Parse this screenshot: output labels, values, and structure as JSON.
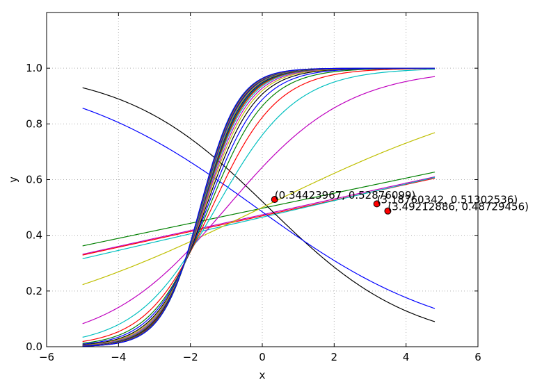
{
  "chart_data": {
    "type": "line",
    "xlabel": "x",
    "ylabel": "y",
    "xlim": [
      -6,
      6
    ],
    "ylim": [
      0,
      1.2
    ],
    "xticks": [
      "−6",
      "−4",
      "−2",
      "0",
      "2",
      "4",
      "6"
    ],
    "xtick_values": [
      -6,
      -4,
      -2,
      0,
      2,
      4,
      6
    ],
    "yticks": [
      "0.0",
      "0.2",
      "0.4",
      "0.6",
      "0.8",
      "1.0"
    ],
    "ytick_values": [
      0,
      0.2,
      0.4,
      0.6,
      0.8,
      1.0
    ],
    "grid": true,
    "x_range": [
      -5,
      4.8
    ],
    "sigmoid_curves_note_colors": [
      "#0000ff",
      "#008000",
      "#ff0000",
      "#00bfbf",
      "#bf00bf",
      "#bfbf00",
      "#000000"
    ],
    "sigmoid_family": [
      {
        "k": 0.25,
        "x0": 0,
        "color": "#bfbf00"
      },
      {
        "k": 0.6,
        "x0": -0.99,
        "color": "#bf00bf"
      },
      {
        "k": 0.9,
        "x0": -1.28,
        "color": "#00bfbf"
      },
      {
        "k": 1.1,
        "x0": -1.4,
        "color": "#ff0000"
      },
      {
        "k": 1.25,
        "x0": -1.48,
        "color": "#008000"
      },
      {
        "k": 1.35,
        "x0": -1.53,
        "color": "#0000ff"
      },
      {
        "k": 1.45,
        "x0": -1.57,
        "color": "#000000"
      },
      {
        "k": 1.52,
        "x0": -1.6,
        "color": "#bfbf00"
      },
      {
        "k": 1.58,
        "x0": -1.62,
        "color": "#bf00bf"
      },
      {
        "k": 1.63,
        "x0": -1.64,
        "color": "#00bfbf"
      },
      {
        "k": 1.67,
        "x0": -1.65,
        "color": "#ff0000"
      },
      {
        "k": 1.7,
        "x0": -1.66,
        "color": "#008000"
      },
      {
        "k": 1.73,
        "x0": -1.67,
        "color": "#0000ff"
      },
      {
        "k": 1.75,
        "x0": -1.68,
        "color": "#000000"
      },
      {
        "k": 1.77,
        "x0": -1.68,
        "color": "#bfbf00"
      },
      {
        "k": 1.79,
        "x0": -1.69,
        "color": "#bf00bf"
      },
      {
        "k": 1.8,
        "x0": -1.69,
        "color": "#00bfbf"
      },
      {
        "k": 1.81,
        "x0": -1.7,
        "color": "#ff0000"
      },
      {
        "k": 1.82,
        "x0": -1.7,
        "color": "#008000"
      },
      {
        "k": 1.83,
        "x0": -1.7,
        "color": "#0000ff"
      },
      {
        "k": 1.84,
        "x0": -1.71,
        "color": "#000000"
      },
      {
        "k": 1.85,
        "x0": -1.71,
        "color": "#bfbf00"
      },
      {
        "k": 1.86,
        "x0": -1.71,
        "color": "#bf00bf"
      },
      {
        "k": 1.87,
        "x0": -1.72,
        "color": "#00bfbf"
      },
      {
        "k": 1.88,
        "x0": -1.72,
        "color": "#ff0000"
      },
      {
        "k": 1.89,
        "x0": -1.72,
        "color": "#008000"
      },
      {
        "k": 1.9,
        "x0": -1.73,
        "color": "#0000ff"
      }
    ],
    "line_series": [
      {
        "type": "linear",
        "from": [
          -5,
          0.362
        ],
        "to": [
          4.8,
          0.627
        ],
        "color": "#008000"
      },
      {
        "type": "linear",
        "from": [
          -5,
          0.332
        ],
        "to": [
          4.8,
          0.61
        ],
        "color": "#bf00bf"
      },
      {
        "type": "linear",
        "from": [
          -5,
          0.329
        ],
        "to": [
          4.8,
          0.605
        ],
        "color": "#ff0000"
      },
      {
        "type": "linear",
        "from": [
          -5,
          0.316
        ],
        "to": [
          4.8,
          0.608
        ],
        "color": "#00bfbf"
      }
    ],
    "decreasing_series": [
      {
        "k": -0.5,
        "x0": 0.17,
        "color": "#000000"
      },
      {
        "k": -0.37,
        "x0": -0.17,
        "color": "#0000ff"
      }
    ],
    "points": [
      {
        "x": 0.34423967,
        "y": 0.52876099,
        "label": "(0.34423967, 0.52876099)"
      },
      {
        "x": 3.18760342,
        "y": 0.51302536,
        "label": "(3.18760342, 0.51302536)"
      },
      {
        "x": 3.49212886,
        "y": 0.48729456,
        "label": "(3.49212886, 0.48729456)"
      }
    ],
    "point_color": "#ff0000"
  }
}
